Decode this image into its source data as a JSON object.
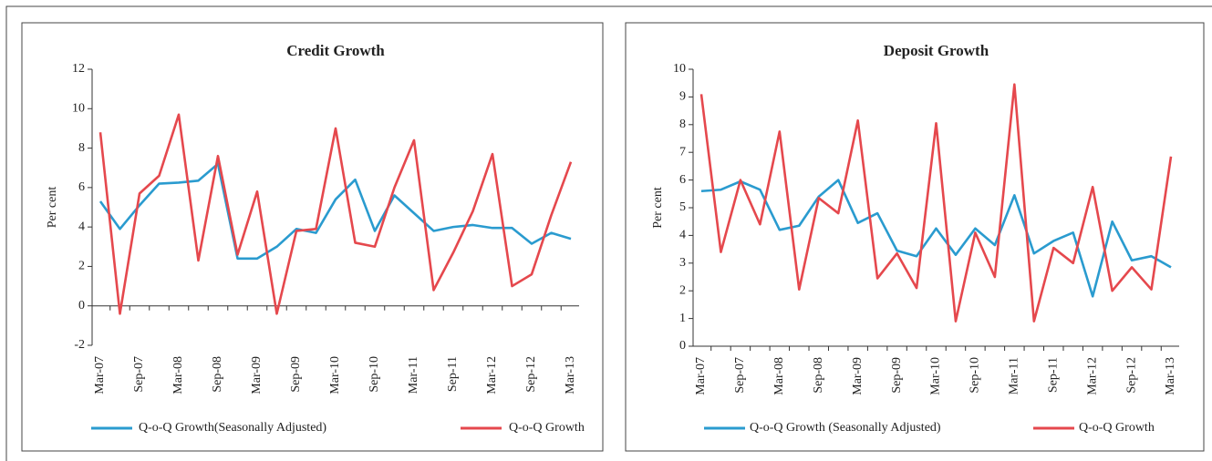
{
  "chart_data": [
    {
      "type": "line",
      "title": "Credit Growth",
      "y_label": "Per cent",
      "categories": [
        "Mar-07",
        null,
        "Sep-07",
        null,
        "Mar-08",
        null,
        "Sep-08",
        null,
        "Mar-09",
        null,
        "Sep-09",
        null,
        "Mar-10",
        null,
        "Sep-10",
        null,
        "Mar-11",
        null,
        "Sep-11",
        null,
        "Mar-12",
        null,
        "Sep-12",
        null,
        "Mar-13"
      ],
      "series": [
        {
          "name": "Q-o-Q Growth(Seasonally Adjusted)",
          "color": "#2a9bcf",
          "values": [
            5.3,
            3.9,
            5.1,
            6.2,
            6.25,
            6.35,
            7.2,
            2.4,
            2.4,
            3.0,
            3.9,
            3.7,
            5.4,
            6.4,
            3.8,
            5.6,
            4.7,
            3.8,
            4.0,
            4.1,
            3.95,
            3.95,
            3.15,
            3.7,
            3.4
          ]
        },
        {
          "name": "Q-o-Q Growth",
          "color": "#e5484d",
          "values": [
            8.8,
            -0.4,
            5.7,
            6.6,
            9.7,
            2.3,
            7.6,
            2.6,
            5.8,
            -0.4,
            3.8,
            3.9,
            9.0,
            3.2,
            3.0,
            6.0,
            8.4,
            0.8,
            2.7,
            4.8,
            7.7,
            1.0,
            1.6,
            4.6,
            7.3
          ]
        }
      ],
      "ylim": [
        -2,
        12
      ],
      "yticks": [
        -2,
        0,
        2,
        4,
        6,
        8,
        10,
        12
      ]
    },
    {
      "type": "line",
      "title": "Deposit Growth",
      "y_label": "Per cent",
      "categories": [
        "Mar-07",
        null,
        "Sep-07",
        null,
        "Mar-08",
        null,
        "Sep-08",
        null,
        "Mar-09",
        null,
        "Sep-09",
        null,
        "Mar-10",
        null,
        "Sep-10",
        null,
        "Mar-11",
        null,
        "Sep-11",
        null,
        "Mar-12",
        null,
        "Sep-12",
        null,
        "Mar-13"
      ],
      "series": [
        {
          "name": "Q-o-Q Growth (Seasonally Adjusted)",
          "color": "#2a9bcf",
          "values": [
            5.6,
            5.65,
            5.95,
            5.65,
            4.2,
            4.35,
            5.4,
            6.0,
            4.45,
            4.8,
            3.45,
            3.25,
            4.25,
            3.3,
            4.25,
            3.65,
            5.45,
            3.35,
            3.8,
            4.1,
            1.8,
            4.5,
            3.1,
            3.25,
            2.85
          ]
        },
        {
          "name": "Q-o-Q Growth",
          "color": "#e5484d",
          "values": [
            9.1,
            3.4,
            6.0,
            4.4,
            7.75,
            2.05,
            5.35,
            4.8,
            8.15,
            2.45,
            3.35,
            2.1,
            8.05,
            0.9,
            4.1,
            2.5,
            9.45,
            0.9,
            3.55,
            3.0,
            5.75,
            2.0,
            2.85,
            2.05,
            6.85
          ]
        }
      ],
      "ylim": [
        0,
        10
      ],
      "yticks": [
        0,
        1,
        2,
        3,
        4,
        5,
        6,
        7,
        8,
        9,
        10
      ]
    }
  ]
}
